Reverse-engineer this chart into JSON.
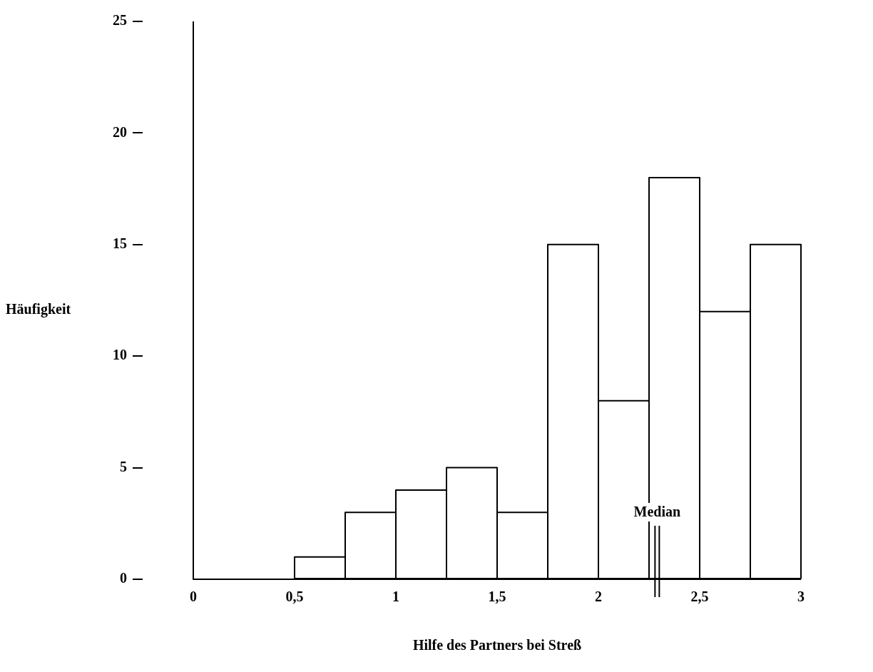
{
  "chart_data": {
    "type": "histogram",
    "xlabel": "Hilfe des Partners bei Streß",
    "ylabel": "Häufigkeit",
    "bins": [
      0.5,
      0.75,
      1,
      1.25,
      1.5,
      1.75,
      2,
      2.25,
      2.5,
      2.75,
      3
    ],
    "values": [
      1,
      3,
      4,
      5,
      3,
      15,
      8,
      18,
      12,
      15
    ],
    "color": "#000000",
    "xlim": [
      0,
      3
    ],
    "xticks": [
      0,
      {
        "value": 0.5,
        "label": "0,5"
      },
      1,
      {
        "value": 1.5,
        "label": "1,5"
      },
      2,
      {
        "value": 2.5,
        "label": "2,5"
      },
      3
    ],
    "ylim": [
      0,
      25
    ],
    "yticks": [
      0,
      5,
      10,
      15,
      20,
      25
    ],
    "ref_lines": [
      {
        "axis": "x",
        "value": 2.29,
        "label": "Median"
      }
    ],
    "grid": false,
    "legend": false
  }
}
